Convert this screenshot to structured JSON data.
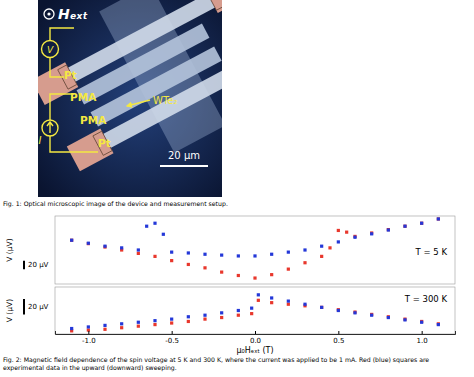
{
  "figure_1": {
    "field_label": "Hₑₓₜ",
    "voltmeter": "V",
    "current": "I",
    "strip_labels": [
      "Pt",
      "PMA",
      "PMA",
      "Pt"
    ],
    "flake_label": "WTe₂",
    "scale_bar": "20 μm",
    "caption": "Fig. 1: Optical microscopic image of the device and measurement setup."
  },
  "chart_data": [
    {
      "type": "scatter",
      "y_label": "V (μV)",
      "annotation": "T = 5 K",
      "xlim": [
        -1.2,
        1.2
      ],
      "ylim": [
        0,
        160
      ],
      "tick_labels": false,
      "marker": "square",
      "scale_bar": {
        "value": 20,
        "label": "20 μV"
      },
      "series": [
        {
          "color": "#e8372c",
          "x": [
            1.1,
            1.0,
            0.9,
            0.8,
            0.7,
            0.6,
            0.55,
            0.5,
            0.45,
            0.4,
            0.3,
            0.2,
            0.1,
            0,
            -0.1,
            -0.2,
            -0.3,
            -0.4,
            -0.5,
            -0.6,
            -0.7,
            -0.8,
            -0.9,
            -1.0,
            -1.1
          ],
          "values": [
            153,
            143,
            136,
            128,
            120,
            112,
            122,
            126,
            85,
            65,
            50,
            35,
            22,
            14,
            20,
            28,
            38,
            46,
            55,
            65,
            72,
            80,
            87,
            95,
            103
          ]
        },
        {
          "color": "#2438d8",
          "x": [
            -1.1,
            -1.0,
            -0.9,
            -0.8,
            -0.7,
            -0.65,
            -0.6,
            -0.55,
            -0.5,
            -0.4,
            -0.3,
            -0.2,
            -0.1,
            0,
            0.1,
            0.2,
            0.3,
            0.4,
            0.5,
            0.6,
            0.7,
            0.8,
            0.9,
            1.0,
            1.1
          ],
          "values": [
            103,
            96,
            89,
            85,
            80,
            136,
            143,
            117,
            75,
            73,
            70,
            68,
            66,
            66,
            70,
            75,
            80,
            89,
            99,
            110,
            118,
            127,
            136,
            143,
            153
          ]
        }
      ]
    },
    {
      "type": "scatter",
      "y_label": "V (μV)",
      "annotation": "T = 300 K",
      "x_label": "μ₀Hₑₓₜ (T)",
      "xlim": [
        -1.2,
        1.2
      ],
      "ylim": [
        0,
        60
      ],
      "tick_labels": "x",
      "marker": "square",
      "xticks": [
        {
          "value": -1,
          "label": "-1.0"
        },
        {
          "value": -0.5,
          "label": "-0.5"
        },
        {
          "value": 0,
          "label": "0.0"
        },
        {
          "value": 0.5,
          "label": "0.5"
        },
        {
          "value": 1,
          "label": "1.0"
        }
      ],
      "scale_bar": {
        "value": 20,
        "label": "20 μV"
      },
      "series": [
        {
          "color": "#e8372c",
          "x": [
            1.1,
            1.0,
            0.9,
            0.8,
            0.7,
            0.6,
            0.5,
            0.4,
            0.3,
            0.2,
            0.1,
            0.02,
            -0.02,
            -0.1,
            -0.2,
            -0.3,
            -0.4,
            -0.5,
            -0.6,
            -0.7,
            -0.8,
            -0.9,
            -1.0,
            -1.1
          ],
          "values": [
            13,
            16,
            19,
            22,
            25,
            28,
            31,
            34,
            36,
            38,
            40,
            43,
            26,
            24,
            21,
            19,
            16,
            14,
            12,
            10,
            8,
            6,
            5,
            4
          ]
        },
        {
          "color": "#2438d8",
          "x": [
            -1.1,
            -1.0,
            -0.9,
            -0.8,
            -0.7,
            -0.6,
            -0.5,
            -0.4,
            -0.3,
            -0.2,
            -0.1,
            -0.02,
            0.02,
            0.1,
            0.2,
            0.3,
            0.4,
            0.5,
            0.6,
            0.7,
            0.8,
            0.9,
            1.0,
            1.1
          ],
          "values": [
            7,
            9,
            11,
            13,
            15,
            17,
            19,
            22,
            24,
            27,
            30,
            33,
            50,
            46,
            42,
            38,
            34,
            30,
            27,
            24,
            21,
            18,
            15,
            12
          ]
        }
      ]
    }
  ],
  "figure_2": {
    "caption": "Fig. 2: Magnetic field dependence of the spin voltage at 5 K and 300 K, where the current was applied to be 1 mA. Red (blue) squares are experimental data in the upward (downward) sweeping."
  }
}
